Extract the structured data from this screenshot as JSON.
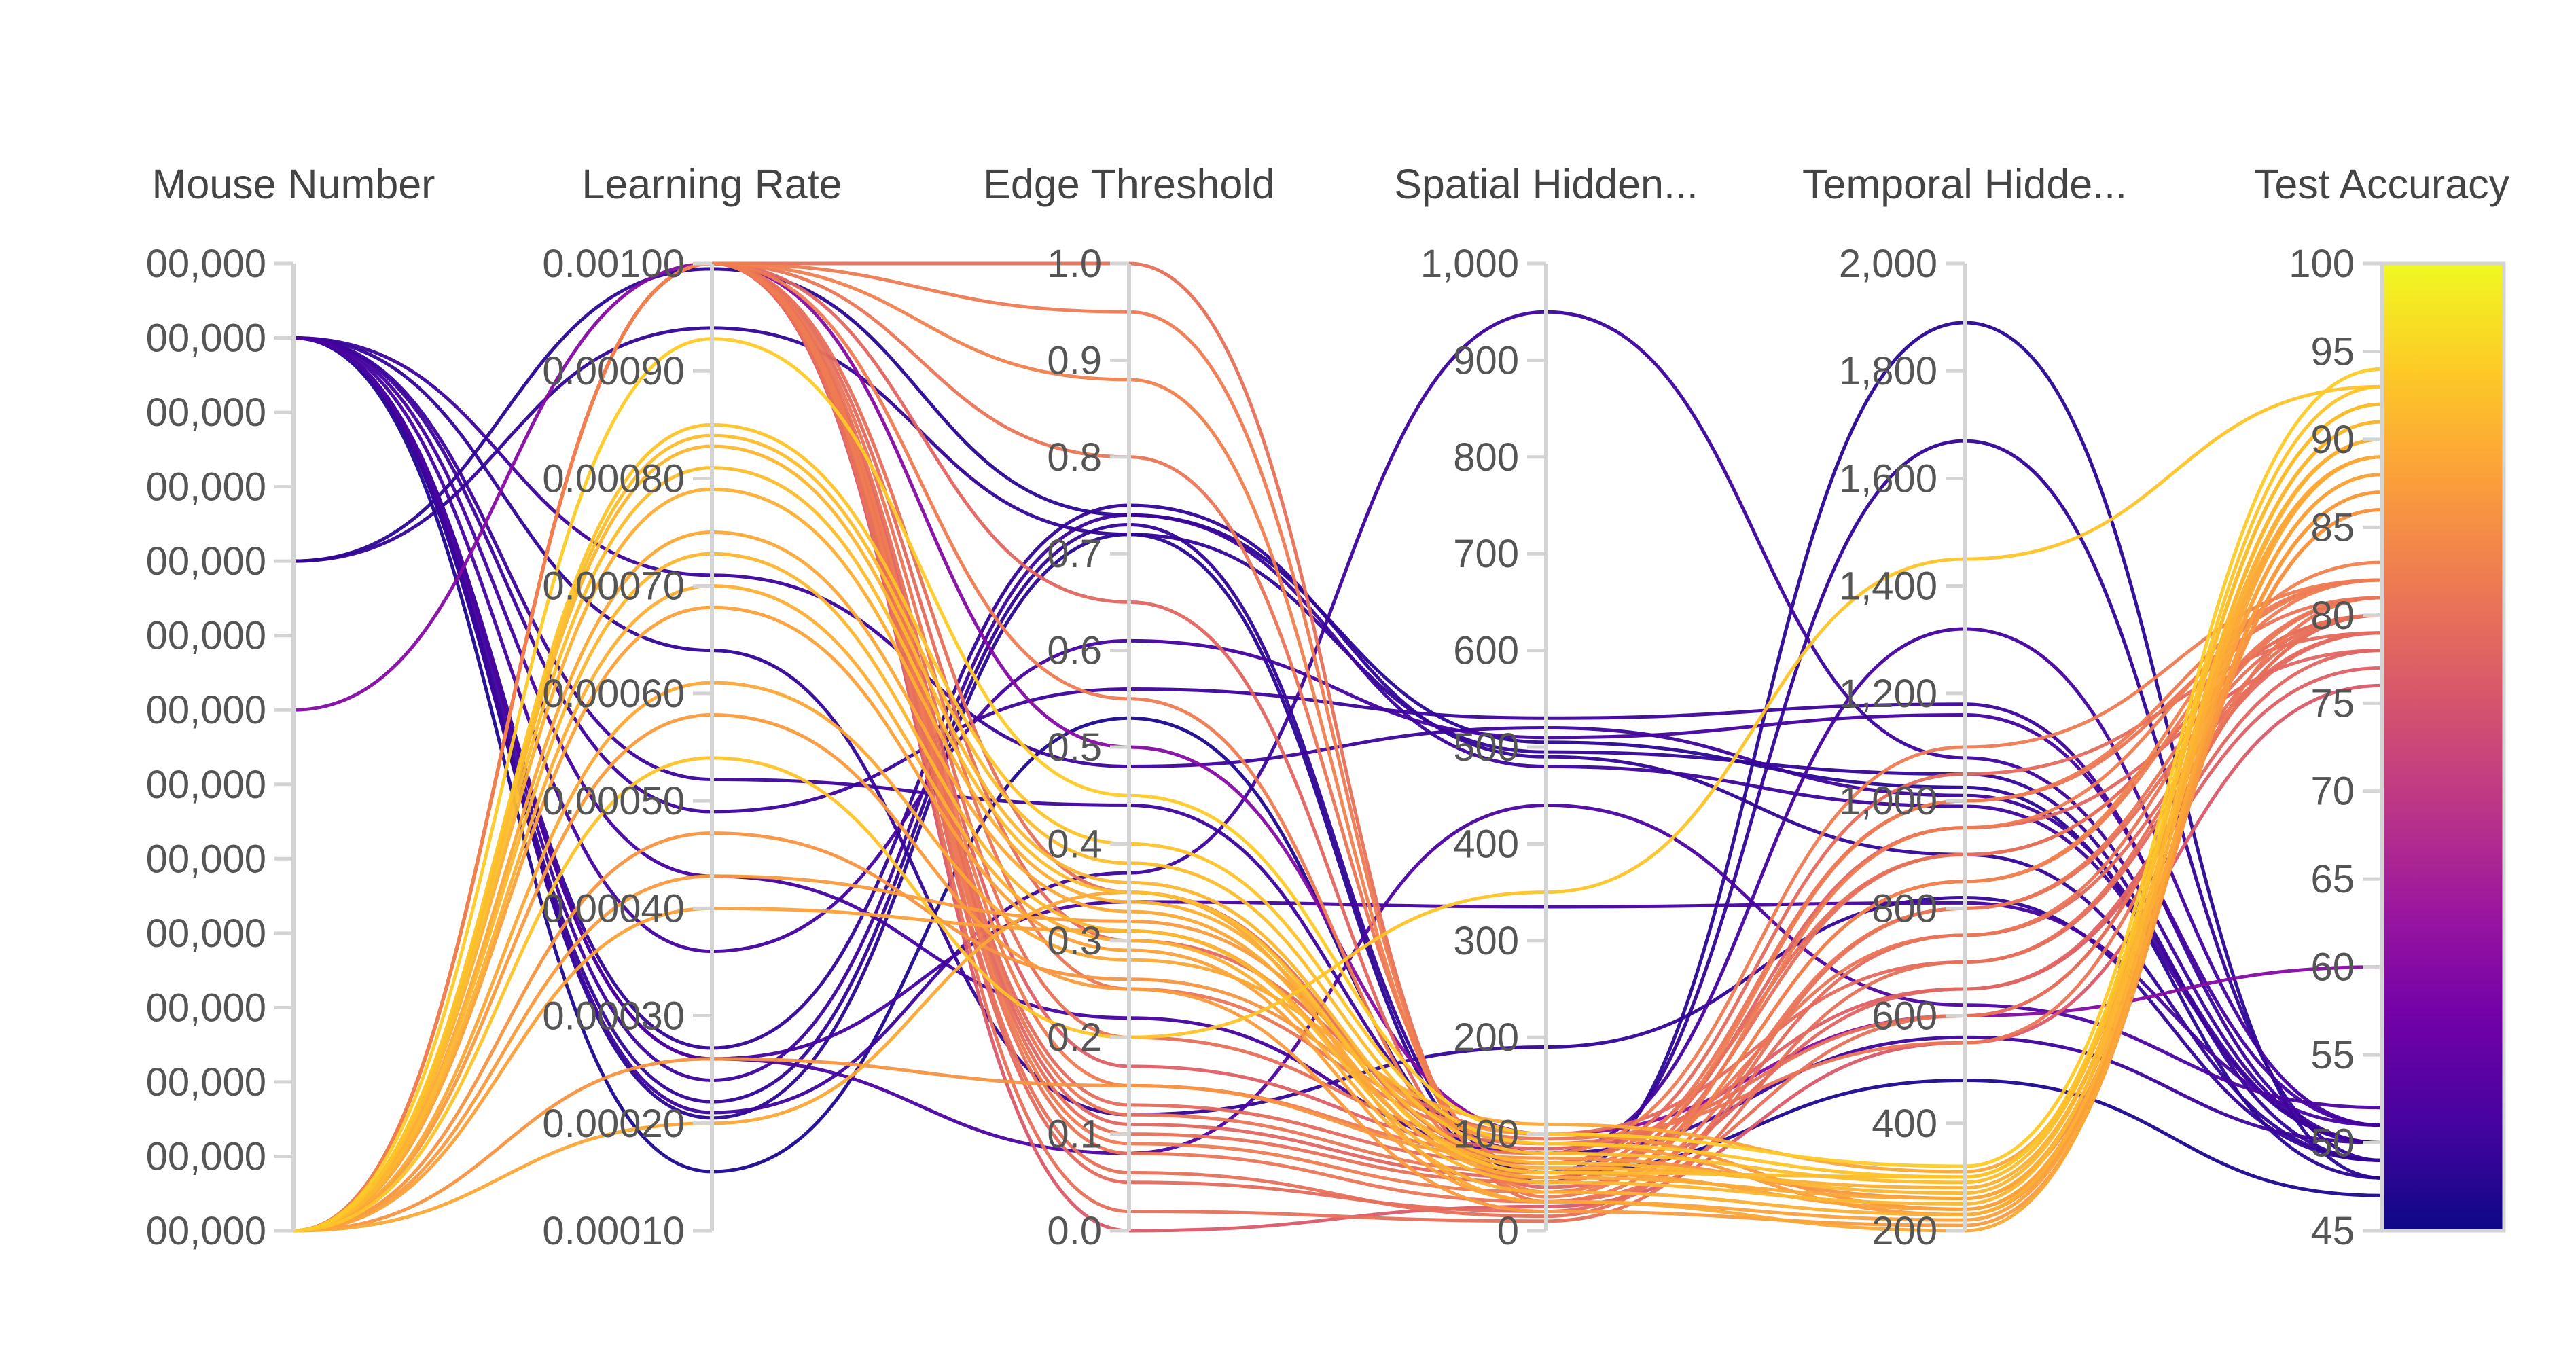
{
  "chart_data": {
    "type": "parallel_coordinates",
    "axes": [
      {
        "key": "mouse",
        "label": "Mouse Number",
        "range": [
          0,
          13
        ],
        "ticks": [
          0,
          1,
          2,
          3,
          4,
          5,
          6,
          7,
          8,
          9,
          10,
          11,
          12,
          13
        ],
        "tick_labels": [
          "00,000",
          "00,000",
          "00,000",
          "00,000",
          "00,000",
          "00,000",
          "00,000",
          "00,000",
          "00,000",
          "00,000",
          "00,000",
          "00,000",
          "00,000",
          "00,000"
        ]
      },
      {
        "key": "lr",
        "label": "Learning Rate",
        "range": [
          0.0001,
          0.001
        ],
        "ticks": [
          0.0001,
          0.0002,
          0.0003,
          0.0004,
          0.0005,
          0.0006,
          0.0007,
          0.0008,
          0.0009,
          0.001
        ],
        "tick_labels": [
          "0.00010",
          "0.00020",
          "0.00030",
          "0.00040",
          "0.00050",
          "0.00060",
          "0.00070",
          "0.00080",
          "0.00090",
          "0.00100"
        ]
      },
      {
        "key": "edge",
        "label": "Edge Threshold",
        "range": [
          0,
          1
        ],
        "ticks": [
          0,
          0.1,
          0.2,
          0.3,
          0.4,
          0.5,
          0.6,
          0.7,
          0.8,
          0.9,
          1.0
        ],
        "tick_labels": [
          "0.0",
          "0.1",
          "0.2",
          "0.3",
          "0.4",
          "0.5",
          "0.6",
          "0.7",
          "0.8",
          "0.9",
          "1.0"
        ]
      },
      {
        "key": "spatial",
        "label": "Spatial Hidden...",
        "range": [
          0,
          1000
        ],
        "ticks": [
          0,
          100,
          200,
          300,
          400,
          500,
          600,
          700,
          800,
          900,
          1000
        ],
        "tick_labels": [
          "0",
          "100",
          "200",
          "300",
          "400",
          "500",
          "600",
          "700",
          "800",
          "900",
          "1,000"
        ]
      },
      {
        "key": "temporal",
        "label": "Temporal Hidde...",
        "range": [
          200,
          2000
        ],
        "ticks": [
          200,
          400,
          600,
          800,
          1000,
          1200,
          1400,
          1600,
          1800,
          2000
        ],
        "tick_labels": [
          "200",
          "400",
          "600",
          "800",
          "1,000",
          "1,200",
          "1,400",
          "1,600",
          "1,800",
          "2,000"
        ]
      },
      {
        "key": "acc",
        "label": "Test Accuracy",
        "range": [
          45,
          100
        ],
        "ticks": [
          45,
          50,
          55,
          60,
          65,
          70,
          75,
          80,
          85,
          90,
          95,
          100
        ],
        "tick_labels": [
          "45",
          "50",
          "55",
          "60",
          "65",
          "70",
          "75",
          "80",
          "85",
          "90",
          "95",
          "100"
        ]
      }
    ],
    "colorscale": {
      "name": "Plasma",
      "range": [
        45,
        100
      ],
      "stops": [
        "#0d0887",
        "#46039f",
        "#7201a8",
        "#9c179e",
        "#bd3786",
        "#d8576b",
        "#ed7953",
        "#fb9f3a",
        "#fdca26",
        "#f0f921"
      ]
    },
    "runs": [
      {
        "mouse": 9,
        "lr": 0.000995,
        "edge": 0.74,
        "spatial": 505,
        "temporal": 1025,
        "acc": 48
      },
      {
        "mouse": 9,
        "lr": 0.00094,
        "edge": 0.72,
        "spatial": 495,
        "temporal": 1050,
        "acc": 49
      },
      {
        "mouse": 12,
        "lr": 0.00049,
        "edge": 0.56,
        "spatial": 530,
        "temporal": 1180,
        "acc": 50
      },
      {
        "mouse": 12,
        "lr": 0.00036,
        "edge": 0.61,
        "spatial": 510,
        "temporal": 1160,
        "acc": 51
      },
      {
        "mouse": 12,
        "lr": 0.00027,
        "edge": 0.75,
        "spatial": 490,
        "temporal": 900,
        "acc": 49
      },
      {
        "mouse": 12,
        "lr": 0.00024,
        "edge": 0.74,
        "spatial": 480,
        "temporal": 990,
        "acc": 50
      },
      {
        "mouse": 12,
        "lr": 0.00022,
        "edge": 0.73,
        "spatial": 60,
        "temporal": 1670,
        "acc": 49
      },
      {
        "mouse": 12,
        "lr": 0.000205,
        "edge": 0.72,
        "spatial": 50,
        "temporal": 1890,
        "acc": 48
      },
      {
        "mouse": 12,
        "lr": 0.00021,
        "edge": 0.37,
        "spatial": 950,
        "temporal": 1080,
        "acc": 50
      },
      {
        "mouse": 12,
        "lr": 0.00026,
        "edge": 0.34,
        "spatial": 335,
        "temporal": 810,
        "acc": 51
      },
      {
        "mouse": 12,
        "lr": 0.00071,
        "edge": 0.48,
        "spatial": 520,
        "temporal": 1010,
        "acc": 50
      },
      {
        "mouse": 12,
        "lr": 0.00064,
        "edge": 0.12,
        "spatial": 190,
        "temporal": 820,
        "acc": 49
      },
      {
        "mouse": 12,
        "lr": 0.00043,
        "edge": 0.22,
        "spatial": 80,
        "temporal": 1320,
        "acc": 51
      },
      {
        "mouse": 12,
        "lr": 0.000155,
        "edge": 0.53,
        "spatial": 60,
        "temporal": 480,
        "acc": 47
      },
      {
        "mouse": 12,
        "lr": 0.00026,
        "edge": 0.08,
        "spatial": 440,
        "temporal": 620,
        "acc": 52
      },
      {
        "mouse": 12,
        "lr": 0.00052,
        "edge": 0.44,
        "spatial": 80,
        "temporal": 560,
        "acc": 50
      },
      {
        "mouse": 7,
        "lr": 0.001,
        "edge": 0.5,
        "spatial": 100,
        "temporal": 600,
        "acc": 60
      },
      {
        "mouse": 0,
        "lr": 0.00093,
        "edge": 0.45,
        "spatial": 100,
        "temporal": 320,
        "acc": 94
      },
      {
        "mouse": 0,
        "lr": 0.00085,
        "edge": 0.4,
        "spatial": 90,
        "temporal": 300,
        "acc": 93
      },
      {
        "mouse": 0,
        "lr": 0.00084,
        "edge": 0.38,
        "spatial": 80,
        "temporal": 290,
        "acc": 92
      },
      {
        "mouse": 0,
        "lr": 0.00083,
        "edge": 0.36,
        "spatial": 70,
        "temporal": 270,
        "acc": 91
      },
      {
        "mouse": 0,
        "lr": 0.00081,
        "edge": 0.35,
        "spatial": 60,
        "temporal": 300,
        "acc": 92
      },
      {
        "mouse": 0,
        "lr": 0.00079,
        "edge": 0.34,
        "spatial": 65,
        "temporal": 280,
        "acc": 90
      },
      {
        "mouse": 0,
        "lr": 0.00075,
        "edge": 0.33,
        "spatial": 55,
        "temporal": 260,
        "acc": 89
      },
      {
        "mouse": 0,
        "lr": 0.00073,
        "edge": 0.31,
        "spatial": 50,
        "temporal": 250,
        "acc": 91
      },
      {
        "mouse": 0,
        "lr": 0.0007,
        "edge": 0.3,
        "spatial": 40,
        "temporal": 230,
        "acc": 90
      },
      {
        "mouse": 0,
        "lr": 0.00068,
        "edge": 0.29,
        "spatial": 30,
        "temporal": 220,
        "acc": 88
      },
      {
        "mouse": 0,
        "lr": 0.00061,
        "edge": 0.28,
        "spatial": 110,
        "temporal": 310,
        "acc": 89
      },
      {
        "mouse": 0,
        "lr": 0.00058,
        "edge": 0.25,
        "spatial": 20,
        "temporal": 210,
        "acc": 87
      },
      {
        "mouse": 0,
        "lr": 0.00054,
        "edge": 0.2,
        "spatial": 350,
        "temporal": 1450,
        "acc": 93
      },
      {
        "mouse": 0,
        "lr": 0.00047,
        "edge": 0.26,
        "spatial": 100,
        "temporal": 240,
        "acc": 86
      },
      {
        "mouse": 0,
        "lr": 0.00043,
        "edge": 0.32,
        "spatial": 90,
        "temporal": 230,
        "acc": 87
      },
      {
        "mouse": 0,
        "lr": 0.0004,
        "edge": 0.31,
        "spatial": 60,
        "temporal": 240,
        "acc": 88
      },
      {
        "mouse": 0,
        "lr": 0.00026,
        "edge": 0.15,
        "spatial": 75,
        "temporal": 260,
        "acc": 86
      },
      {
        "mouse": 0,
        "lr": 0.0002,
        "edge": 0.35,
        "spatial": 30,
        "temporal": 200,
        "acc": 89
      },
      {
        "mouse": 0,
        "lr": 0.001,
        "edge": 0.02,
        "spatial": 10,
        "temporal": 700,
        "acc": 80
      },
      {
        "mouse": 0,
        "lr": 0.001,
        "edge": 0.05,
        "spatial": 20,
        "temporal": 750,
        "acc": 79
      },
      {
        "mouse": 0,
        "lr": 0.001,
        "edge": 0.08,
        "spatial": 30,
        "temporal": 800,
        "acc": 81
      },
      {
        "mouse": 0,
        "lr": 0.001,
        "edge": 0.09,
        "spatial": 40,
        "temporal": 850,
        "acc": 82
      },
      {
        "mouse": 0,
        "lr": 0.001,
        "edge": 0.1,
        "spatial": 50,
        "temporal": 900,
        "acc": 80
      },
      {
        "mouse": 0,
        "lr": 0.001,
        "edge": 0.11,
        "spatial": 55,
        "temporal": 950,
        "acc": 78
      },
      {
        "mouse": 0,
        "lr": 0.001,
        "edge": 0.12,
        "spatial": 60,
        "temporal": 1000,
        "acc": 81
      },
      {
        "mouse": 0,
        "lr": 0.001,
        "edge": 0.13,
        "spatial": 70,
        "temporal": 1050,
        "acc": 79
      },
      {
        "mouse": 0,
        "lr": 0.001,
        "edge": 0.15,
        "spatial": 80,
        "temporal": 1100,
        "acc": 82
      },
      {
        "mouse": 0,
        "lr": 0.001,
        "edge": 0.17,
        "spatial": 85,
        "temporal": 650,
        "acc": 77
      },
      {
        "mouse": 0,
        "lr": 0.001,
        "edge": 0.2,
        "spatial": 90,
        "temporal": 600,
        "acc": 80
      },
      {
        "mouse": 0,
        "lr": 0.001,
        "edge": 0.25,
        "spatial": 95,
        "temporal": 550,
        "acc": 81
      },
      {
        "mouse": 0,
        "lr": 0.001,
        "edge": 0.3,
        "spatial": 100,
        "temporal": 700,
        "acc": 79
      },
      {
        "mouse": 0,
        "lr": 0.001,
        "edge": 0.35,
        "spatial": 70,
        "temporal": 900,
        "acc": 80
      },
      {
        "mouse": 0,
        "lr": 0.001,
        "edge": 0.55,
        "spatial": 50,
        "temporal": 1000,
        "acc": 82
      },
      {
        "mouse": 0,
        "lr": 0.001,
        "edge": 0.65,
        "spatial": 45,
        "temporal": 650,
        "acc": 78
      },
      {
        "mouse": 0,
        "lr": 0.001,
        "edge": 0.8,
        "spatial": 60,
        "temporal": 750,
        "acc": 81
      },
      {
        "mouse": 0,
        "lr": 0.001,
        "edge": 0.88,
        "spatial": 40,
        "temporal": 850,
        "acc": 83
      },
      {
        "mouse": 0,
        "lr": 0.001,
        "edge": 0.95,
        "spatial": 35,
        "temporal": 950,
        "acc": 82
      },
      {
        "mouse": 0,
        "lr": 0.001,
        "edge": 1.0,
        "spatial": 30,
        "temporal": 600,
        "acc": 80
      },
      {
        "mouse": 0,
        "lr": 0.001,
        "edge": 0.0,
        "spatial": 25,
        "temporal": 550,
        "acc": 76
      },
      {
        "mouse": 0,
        "lr": 0.001,
        "edge": 0.06,
        "spatial": 15,
        "temporal": 800,
        "acc": 80
      }
    ]
  }
}
